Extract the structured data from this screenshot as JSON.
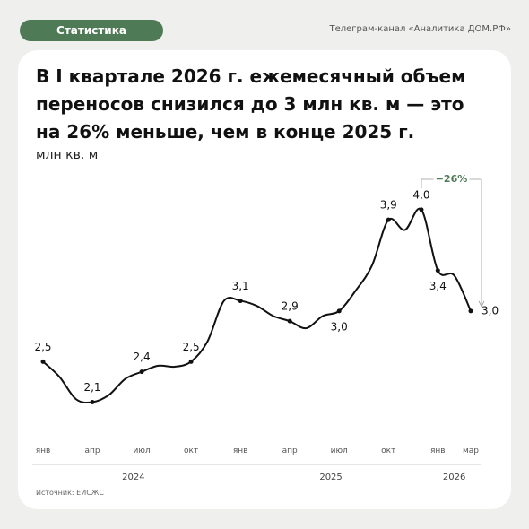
{
  "header": {
    "tag": "Статистика",
    "channel": "Телеграм-канал «Аналитика ДОМ.РФ»"
  },
  "chart_data": {
    "type": "line",
    "title": "В I квартале 2026 г. ежемесячный объем переносов снизился до 3 млн кв. м — это на 26% меньше, чем в конце 2025 г.",
    "y_label": "млн кв. м",
    "categories": [
      "янв",
      null,
      null,
      "апр",
      null,
      null,
      "июл",
      null,
      null,
      "окт",
      null,
      null,
      "янв",
      null,
      null,
      "апр",
      null,
      null,
      "июл",
      null,
      null,
      "окт",
      null,
      null,
      "янв",
      null,
      "мар"
    ],
    "years": [
      "2024",
      "2025",
      "2026"
    ],
    "series": [
      {
        "name": "Переносы",
        "color": "#111111",
        "values": [
          2.5,
          2.35,
          2.13,
          2.1,
          2.17,
          2.33,
          2.4,
          2.46,
          2.45,
          2.5,
          2.7,
          3.1,
          3.1,
          3.05,
          2.95,
          2.9,
          2.83,
          2.95,
          3.0,
          3.2,
          3.45,
          3.9,
          3.8,
          4.0,
          3.4,
          3.35,
          3.0
        ],
        "value_labels": [
          "2,5",
          null,
          null,
          "2,1",
          null,
          null,
          "2,4",
          null,
          null,
          "2,5",
          null,
          null,
          "3,1",
          null,
          null,
          "2,9",
          null,
          null,
          "3,0",
          null,
          null,
          "3,9",
          null,
          "4,0",
          "3,4",
          null,
          "3,0"
        ]
      }
    ],
    "ylim": [
      1.6,
      4.3
    ],
    "annotation": "−26%",
    "source": "Источник: ЕИСЖС"
  }
}
